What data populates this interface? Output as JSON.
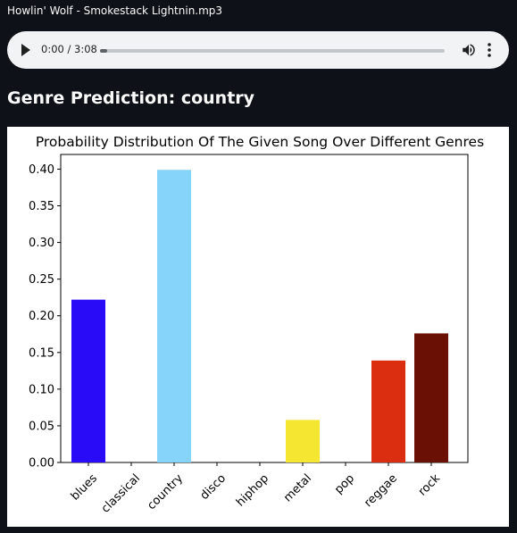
{
  "audio": {
    "file_name": "Howlin' Wolf - Smokestack Lightnin.mp3",
    "time": "0:00 / 3:08",
    "progress": 0.0
  },
  "prediction": {
    "heading": "Genre Prediction: country"
  },
  "icons": {
    "play": "play-icon",
    "volume": "volume-icon",
    "more": "more-vert-icon"
  },
  "chart_data": {
    "type": "bar",
    "title": "Probability Distribution Of The Given Song Over Different Genres",
    "xlabel": "",
    "ylabel": "",
    "categories": [
      "blues",
      "classical",
      "country",
      "disco",
      "hiphop",
      "metal",
      "pop",
      "reggae",
      "rock"
    ],
    "values": [
      0.222,
      0.0,
      0.399,
      0.0,
      0.0,
      0.058,
      0.0,
      0.139,
      0.176
    ],
    "colors": [
      "#2a0bf7",
      "#3b3ef0",
      "#87d4fa",
      "#d8e070",
      "#f0d440",
      "#f5e632",
      "#f08020",
      "#db2e10",
      "#6b1004"
    ],
    "ylim": [
      0,
      0.42
    ],
    "yticks": [
      "0.00",
      "0.05",
      "0.10",
      "0.15",
      "0.20",
      "0.25",
      "0.30",
      "0.35",
      "0.40"
    ],
    "grid": false
  }
}
